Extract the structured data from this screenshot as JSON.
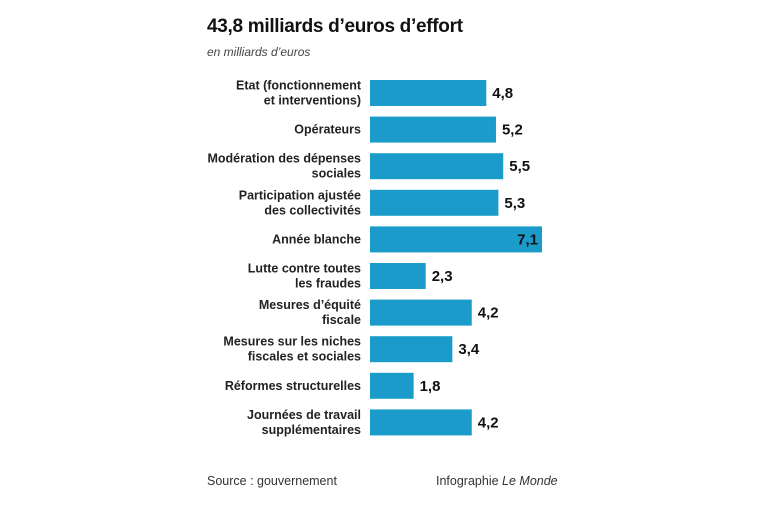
{
  "chart_data": {
    "type": "bar",
    "orientation": "horizontal",
    "title": "43,8 milliards d’euros d’effort",
    "subtitle": "en milliards d’euros",
    "categories": [
      [
        "Etat (fonctionnement",
        "et interventions)"
      ],
      [
        "Opérateurs"
      ],
      [
        "Modération des dépenses",
        "sociales"
      ],
      [
        "Participation ajustée",
        "des collectivités"
      ],
      [
        "Année blanche"
      ],
      [
        "Lutte contre toutes",
        "les fraudes"
      ],
      [
        "Mesures d’équité",
        "fiscale"
      ],
      [
        "Mesures sur les niches",
        "fiscales et sociales"
      ],
      [
        "Réformes structurelles"
      ],
      [
        "Journées de travail",
        "supplémentaires"
      ]
    ],
    "values": [
      4.8,
      5.2,
      5.5,
      5.3,
      7.1,
      2.3,
      4.2,
      3.4,
      1.8,
      4.2
    ],
    "value_labels": [
      "4,8",
      "5,2",
      "5,5",
      "5,3",
      "7,1",
      "2,3",
      "4,2",
      "3,4",
      "1,8",
      "4,2"
    ],
    "xlim": [
      0,
      7.1
    ],
    "grid": false,
    "bar_color": "#1a9bca"
  },
  "footer": {
    "source": "Source : gouvernement",
    "credit_prefix": "Infographie ",
    "credit_brand": "Le Monde"
  }
}
